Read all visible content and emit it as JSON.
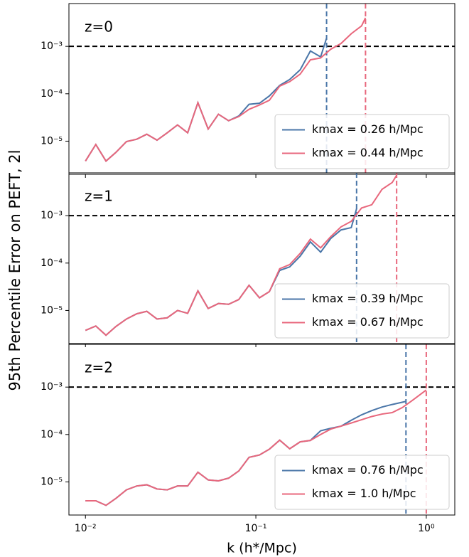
{
  "chart_data": [
    {
      "type": "line",
      "label": "z=0",
      "xscale": "log",
      "yscale": "log",
      "xlim": [
        0.008,
        1.47
      ],
      "ylim": [
        2e-06,
        0.008
      ],
      "xticks": [
        {
          "value": 0.01,
          "label": "10⁻²"
        },
        {
          "value": 0.1,
          "label": "10⁻¹"
        },
        {
          "value": 1,
          "label": "10⁰"
        }
      ],
      "yticks": [
        {
          "value": 1e-05,
          "label": "10⁻⁵"
        },
        {
          "value": 0.0001,
          "label": "10⁻⁴"
        },
        {
          "value": 0.001,
          "label": "10⁻³"
        }
      ],
      "hline": 0.001,
      "legend": "lower right",
      "series": [
        {
          "name": "kmax = 0.26 h/Mpc",
          "color": "#4a76a8",
          "vline": 0.26,
          "x": [
            0.01,
            0.0115,
            0.0132,
            0.0151,
            0.0174,
            0.02,
            0.0229,
            0.0263,
            0.0302,
            0.0347,
            0.0398,
            0.0457,
            0.0525,
            0.0603,
            0.0692,
            0.0794,
            0.0912,
            0.105,
            0.12,
            0.138,
            0.158,
            0.182,
            0.209,
            0.24,
            0.26
          ],
          "values": [
            3.8e-06,
            8.5e-06,
            3.8e-06,
            5.8e-06,
            9.8e-06,
            1.1e-05,
            1.4e-05,
            1.05e-05,
            1.5e-05,
            2.2e-05,
            1.5e-05,
            6.5e-05,
            1.8e-05,
            3.7e-05,
            2.7e-05,
            3.4e-05,
            6e-05,
            6.3e-05,
            9e-05,
            0.00015,
            0.0002,
            0.00032,
            0.0008,
            0.0006,
            0.0015
          ]
        },
        {
          "name": "kmax = 0.44 h/Mpc",
          "color": "#e8677c",
          "vline": 0.44,
          "x": [
            0.01,
            0.0115,
            0.0132,
            0.0151,
            0.0174,
            0.02,
            0.0229,
            0.0263,
            0.0302,
            0.0347,
            0.0398,
            0.0457,
            0.0525,
            0.0603,
            0.0692,
            0.0794,
            0.0912,
            0.105,
            0.12,
            0.138,
            0.158,
            0.182,
            0.209,
            0.24,
            0.275,
            0.316,
            0.363,
            0.417,
            0.44
          ],
          "values": [
            3.8e-06,
            8.5e-06,
            3.8e-06,
            5.8e-06,
            9.8e-06,
            1.1e-05,
            1.4e-05,
            1.05e-05,
            1.5e-05,
            2.2e-05,
            1.5e-05,
            6.5e-05,
            1.8e-05,
            3.7e-05,
            2.7e-05,
            3.3e-05,
            4.7e-05,
            5.8e-05,
            7.3e-05,
            0.000145,
            0.00018,
            0.00026,
            0.00052,
            0.00057,
            0.00087,
            0.00115,
            0.00185,
            0.0027,
            0.004
          ]
        }
      ]
    },
    {
      "type": "line",
      "label": "z=1",
      "ylabel": "95th Percentile Error on PEFT, 2l",
      "xscale": "log",
      "yscale": "log",
      "xlim": [
        0.008,
        1.47
      ],
      "ylim": [
        2e-06,
        0.008
      ],
      "xticks": [
        {
          "value": 0.01,
          "label": "10⁻²"
        },
        {
          "value": 0.1,
          "label": "10⁻¹"
        },
        {
          "value": 1,
          "label": "10⁰"
        }
      ],
      "yticks": [
        {
          "value": 1e-05,
          "label": "10⁻⁵"
        },
        {
          "value": 0.0001,
          "label": "10⁻⁴"
        },
        {
          "value": 0.001,
          "label": "10⁻³"
        }
      ],
      "hline": 0.001,
      "legend": "lower right",
      "series": [
        {
          "name": "kmax = 0.39 h/Mpc",
          "color": "#4a76a8",
          "vline": 0.39,
          "x": [
            0.01,
            0.0115,
            0.0132,
            0.0151,
            0.0174,
            0.02,
            0.0229,
            0.0263,
            0.0302,
            0.0347,
            0.0398,
            0.0457,
            0.0525,
            0.0603,
            0.0692,
            0.0794,
            0.0912,
            0.105,
            0.12,
            0.138,
            0.158,
            0.182,
            0.209,
            0.24,
            0.275,
            0.316,
            0.363,
            0.39
          ],
          "values": [
            3.8e-06,
            4.7e-06,
            3e-06,
            4.6e-06,
            6.6e-06,
            8.5e-06,
            9.6e-06,
            6.6e-06,
            7e-06,
            1e-05,
            8.7e-06,
            2.6e-05,
            1.1e-05,
            1.4e-05,
            1.35e-05,
            1.7e-05,
            3.4e-05,
            1.85e-05,
            2.5e-05,
            7e-05,
            8.3e-05,
            0.00014,
            0.00028,
            0.00017,
            0.00033,
            0.0005,
            0.00056,
            0.0014
          ]
        },
        {
          "name": "kmax = 0.67 h/Mpc",
          "color": "#e8677c",
          "vline": 0.67,
          "x": [
            0.01,
            0.0115,
            0.0132,
            0.0151,
            0.0174,
            0.02,
            0.0229,
            0.0263,
            0.0302,
            0.0347,
            0.0398,
            0.0457,
            0.0525,
            0.0603,
            0.0692,
            0.0794,
            0.0912,
            0.105,
            0.12,
            0.138,
            0.158,
            0.182,
            0.209,
            0.24,
            0.275,
            0.316,
            0.363,
            0.417,
            0.479,
            0.55,
            0.631,
            0.67
          ],
          "values": [
            3.8e-06,
            4.7e-06,
            3e-06,
            4.6e-06,
            6.6e-06,
            8.5e-06,
            9.6e-06,
            6.6e-06,
            7e-06,
            1e-05,
            8.7e-06,
            2.6e-05,
            1.1e-05,
            1.4e-05,
            1.35e-05,
            1.7e-05,
            3.4e-05,
            1.85e-05,
            2.5e-05,
            7.6e-05,
            9.3e-05,
            0.00016,
            0.00032,
            0.00021,
            0.00036,
            0.00058,
            0.00076,
            0.00145,
            0.0017,
            0.0036,
            0.005,
            0.0071
          ]
        }
      ]
    },
    {
      "type": "line",
      "label": "z=2",
      "xlabel": "k (h*/Mpc)",
      "xscale": "log",
      "yscale": "log",
      "xlim": [
        0.008,
        1.47
      ],
      "ylim": [
        2e-06,
        0.008
      ],
      "xticks": [
        {
          "value": 0.01,
          "label": "10⁻²"
        },
        {
          "value": 0.1,
          "label": "10⁻¹"
        },
        {
          "value": 1,
          "label": "10⁰"
        }
      ],
      "yticks": [
        {
          "value": 1e-05,
          "label": "10⁻⁵"
        },
        {
          "value": 0.0001,
          "label": "10⁻⁴"
        },
        {
          "value": 0.001,
          "label": "10⁻³"
        }
      ],
      "hline": 0.001,
      "legend": "lower right",
      "series": [
        {
          "name": "kmax = 0.76 h/Mpc",
          "color": "#4a76a8",
          "vline": 0.76,
          "x": [
            0.01,
            0.0115,
            0.0132,
            0.0151,
            0.0174,
            0.02,
            0.0229,
            0.0263,
            0.0302,
            0.0347,
            0.0398,
            0.0457,
            0.0525,
            0.0603,
            0.0692,
            0.0794,
            0.0912,
            0.105,
            0.12,
            0.138,
            0.158,
            0.182,
            0.209,
            0.24,
            0.275,
            0.316,
            0.363,
            0.417,
            0.479,
            0.55,
            0.631,
            0.76
          ],
          "values": [
            4e-06,
            4e-06,
            3.2e-06,
            4.5e-06,
            6.8e-06,
            8.2e-06,
            8.7e-06,
            7.1e-06,
            6.8e-06,
            8.2e-06,
            8.2e-06,
            1.6e-05,
            1.1e-05,
            1.05e-05,
            1.2e-05,
            1.7e-05,
            3.3e-05,
            3.7e-05,
            4.9e-05,
            7.6e-05,
            5e-05,
            7e-05,
            7.5e-05,
            0.00012,
            0.000135,
            0.00015,
            0.0002,
            0.00026,
            0.00032,
            0.00038,
            0.00043,
            0.0005
          ]
        },
        {
          "name": "kmax = 1.0 h/Mpc",
          "color": "#e8677c",
          "vline": 1.0,
          "x": [
            0.01,
            0.0115,
            0.0132,
            0.0151,
            0.0174,
            0.02,
            0.0229,
            0.0263,
            0.0302,
            0.0347,
            0.0398,
            0.0457,
            0.0525,
            0.0603,
            0.0692,
            0.0794,
            0.0912,
            0.105,
            0.12,
            0.138,
            0.158,
            0.182,
            0.209,
            0.24,
            0.275,
            0.316,
            0.363,
            0.417,
            0.479,
            0.55,
            0.631,
            0.724,
            0.832,
            1.0
          ],
          "values": [
            4e-06,
            4e-06,
            3.2e-06,
            4.5e-06,
            6.8e-06,
            8.2e-06,
            8.7e-06,
            7.1e-06,
            6.8e-06,
            8.2e-06,
            8.2e-06,
            1.6e-05,
            1.1e-05,
            1.05e-05,
            1.2e-05,
            1.7e-05,
            3.3e-05,
            3.7e-05,
            4.9e-05,
            7.6e-05,
            5e-05,
            7e-05,
            7.5e-05,
            0.0001,
            0.00013,
            0.00015,
            0.000175,
            0.000205,
            0.00024,
            0.00027,
            0.00029,
            0.00037,
            0.00053,
            0.00087
          ]
        }
      ]
    }
  ]
}
